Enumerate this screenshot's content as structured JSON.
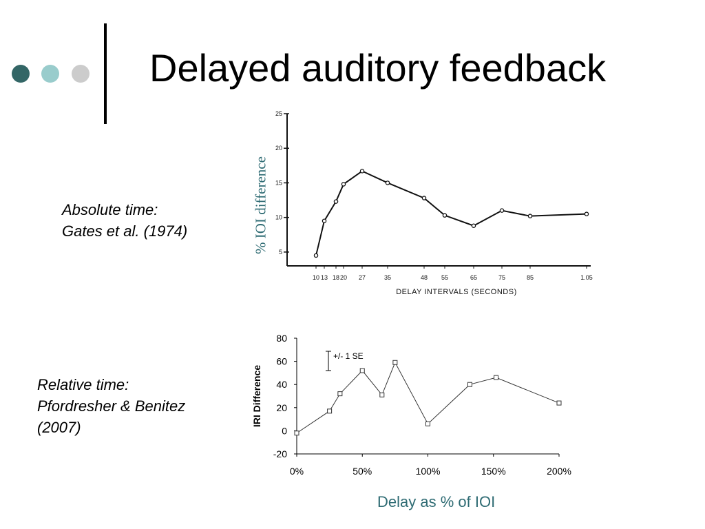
{
  "slide": {
    "title": "Delayed auditory feedback",
    "bullet_colors": [
      "#336666",
      "#99cccc",
      "#cccccc"
    ],
    "caption1_line1": "Absolute time:",
    "caption1_line2": "Gates et al. (1974)",
    "caption2_line1": "Relative time:",
    "caption2_line2": "Pfordresher & Benitez",
    "caption2_line3": "(2007)",
    "ylabel_overlay": "% IOI difference",
    "xlabel_overlay": "Delay as % of IOI",
    "accent_color": "#2e6b73"
  },
  "chart_data": [
    {
      "type": "line",
      "title": "",
      "xlabel": "DELAY INTERVALS (SECONDS)",
      "ylabel": "",
      "x": [
        0.1,
        0.13,
        0.18,
        0.2,
        0.27,
        0.35,
        0.48,
        0.55,
        0.65,
        0.75,
        0.85,
        1.05
      ],
      "x_tick_labels": [
        "10",
        "13",
        "18",
        "20",
        "27",
        "35",
        "48",
        "55",
        "65",
        "75",
        "85",
        "1.05"
      ],
      "y": [
        4.5,
        9.5,
        12.3,
        14.8,
        16.7,
        15.0,
        12.8,
        10.3,
        8.8,
        11.0,
        10.2,
        10.5
      ],
      "ylim": [
        3,
        25
      ],
      "y_ticks": [
        5,
        10,
        15,
        20,
        25
      ],
      "grid": false,
      "style": "handdrawn"
    },
    {
      "type": "line",
      "title": "",
      "xlabel": "",
      "ylabel": "IRI Difference",
      "x": [
        0,
        25,
        33,
        50,
        65,
        75,
        100,
        132,
        152,
        200
      ],
      "y": [
        -2,
        17,
        32,
        52,
        31,
        59,
        6,
        40,
        46,
        24
      ],
      "xlim": [
        0,
        200
      ],
      "ylim": [
        -20,
        80
      ],
      "x_ticks": [
        0,
        50,
        100,
        150,
        200
      ],
      "x_tick_labels": [
        "0%",
        "50%",
        "100%",
        "150%",
        "200%"
      ],
      "y_ticks": [
        -20,
        0,
        20,
        40,
        60,
        80
      ],
      "y_tick_labels": [
        "-20",
        "0",
        "20",
        "40",
        "60",
        "80"
      ],
      "annotation": "+/- 1 SE",
      "marker": "square",
      "grid": false
    }
  ]
}
